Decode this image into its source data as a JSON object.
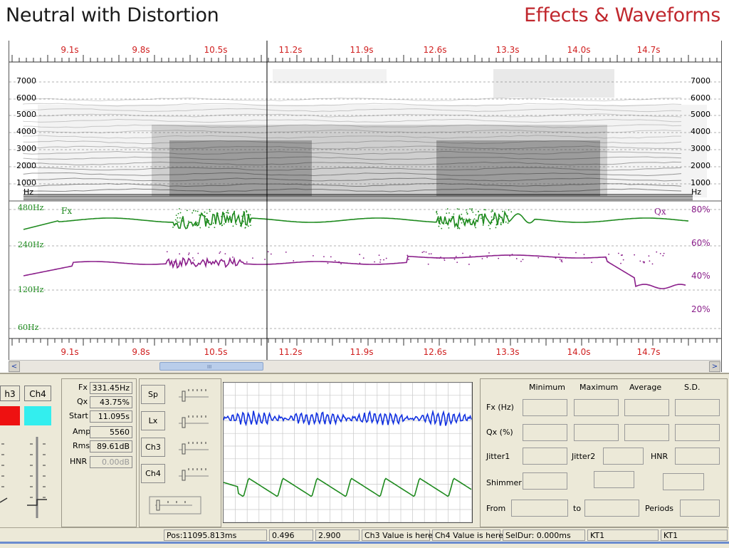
{
  "header": {
    "title": "Neutral with Distortion",
    "section": "Effects & Waveforms"
  },
  "timeline": {
    "time_labels": [
      "9.1s",
      "9.8s",
      "10.5s",
      "11.2s",
      "11.9s",
      "12.6s",
      "13.3s",
      "14.0s",
      "14.7s"
    ],
    "cursor_time_s": 11.095
  },
  "spectrogram": {
    "freq_labels": [
      "7000",
      "6000",
      "5000",
      "4000",
      "3000",
      "2000",
      "1000"
    ],
    "unit": "Hz"
  },
  "pitch_plot": {
    "fx_label": "Fx",
    "qx_label": "Qx",
    "left_axis": [
      "480Hz",
      "240Hz",
      "120Hz",
      "60Hz"
    ],
    "right_axis": [
      "80%",
      "60%",
      "40%",
      "20%"
    ],
    "colors": {
      "fx": "#1e8a1e",
      "qx": "#8a1e8a"
    }
  },
  "channels": {
    "tab_ch3": "h3",
    "tab_ch4": "Ch4",
    "colors": {
      "ch3": "#ee1111",
      "ch4": "#33eeee"
    }
  },
  "readouts": [
    {
      "label": "Fx",
      "value": "331.45Hz"
    },
    {
      "label": "Qx",
      "value": "43.75%"
    },
    {
      "label": "Start",
      "value": "11.095s"
    },
    {
      "label": "Amp",
      "value": "5560"
    },
    {
      "label": "Rms",
      "value": "89.61dB"
    },
    {
      "label": "HNR",
      "value": "0.00dB"
    }
  ],
  "controls": [
    {
      "label": "Sp"
    },
    {
      "label": "Lx"
    },
    {
      "label": "Ch3"
    },
    {
      "label": "Ch4"
    }
  ],
  "waveform": {
    "colors": {
      "top": "#1030e0",
      "bottom": "#1e8a1e"
    }
  },
  "stats": {
    "columns": [
      "Minimum",
      "Maximum",
      "Average",
      "S.D."
    ],
    "rows": [
      "Fx (Hz)",
      "Qx (%)"
    ],
    "jitter1": "Jitter1",
    "jitter2": "Jitter2",
    "hnr": "HNR",
    "shimmer": "Shimmer",
    "from": "From",
    "to": "to",
    "periods": "Periods"
  },
  "status_bar": {
    "pos": "Pos:11095.813ms",
    "v1": "0.496",
    "v2": "2.900",
    "ch3": "Ch3 Value is here",
    "ch4": "Ch4 Value is here",
    "seldur": "SelDur: 0.000ms",
    "kt1a": "KT1",
    "kt1b": "KT1"
  },
  "scrollbar": {
    "grip": "III",
    "left_arrow": "<",
    "right_arrow": ">"
  }
}
